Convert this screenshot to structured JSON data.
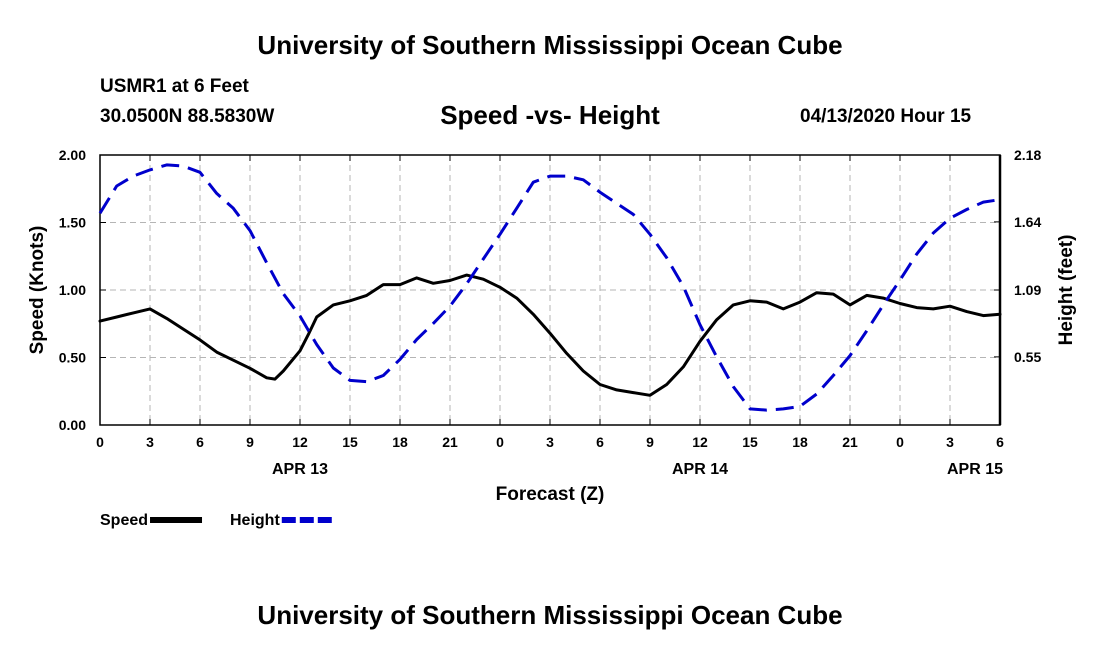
{
  "header": {
    "title": "University of Southern Mississippi Ocean Cube",
    "station": "USMR1 at 6 Feet",
    "coordinates": "30.0500N 88.5830W",
    "subtitle": "Speed -vs- Height",
    "date": "04/13/2020 Hour 15"
  },
  "footer": {
    "title": "University of Southern Mississippi Ocean Cube"
  },
  "chart_data": {
    "type": "line",
    "title": "Speed -vs- Height",
    "xlabel": "Forecast (Z)",
    "ylabel": "Speed (Knots)",
    "y2label": "Height (feet)",
    "xlim": [
      0,
      54
    ],
    "ylim": [
      0,
      2.0
    ],
    "y2lim": [
      0.0,
      2.18
    ],
    "grid": true,
    "x_tick_values": [
      0,
      3,
      6,
      9,
      12,
      15,
      18,
      21,
      24,
      27,
      30,
      33,
      36,
      39,
      42,
      45,
      48,
      51,
      54
    ],
    "x_tick_labels": [
      "0",
      "3",
      "6",
      "9",
      "12",
      "15",
      "18",
      "21",
      "0",
      "3",
      "6",
      "9",
      "12",
      "15",
      "18",
      "21",
      "0",
      "3",
      "6"
    ],
    "date_labels": [
      {
        "x": 12,
        "label": "APR 13"
      },
      {
        "x": 36,
        "label": "APR 14"
      },
      {
        "x": 52.5,
        "label": "APR 15"
      }
    ],
    "y_ticks": [
      0,
      0.5,
      1.0,
      1.5,
      2.0
    ],
    "y_tick_labels": [
      "0.00",
      "0.50",
      "1.00",
      "1.50",
      "2.00"
    ],
    "y2_ticks": [
      0.55,
      1.09,
      1.64,
      2.18
    ],
    "y2_tick_labels": [
      "0.55",
      "1.09",
      "1.64",
      "2.18"
    ],
    "legend": [
      "Speed",
      "Height"
    ],
    "legend_position": "bottom-left",
    "series": [
      {
        "name": "Speed",
        "axis": "left",
        "color": "#000000",
        "style": "solid",
        "x": [
          0,
          1,
          2,
          3,
          4,
          5,
          6,
          7,
          8,
          9,
          10,
          10.5,
          11,
          12,
          12.5,
          13,
          14,
          15,
          16,
          17,
          18,
          19,
          20,
          21,
          22,
          23,
          24,
          25,
          26,
          27,
          28,
          29,
          30,
          31,
          32,
          33,
          34,
          35,
          36,
          37,
          38,
          39,
          40,
          41,
          42,
          43,
          44,
          45,
          46,
          47,
          48,
          49,
          50,
          51,
          52,
          53,
          54
        ],
        "values": [
          0.77,
          0.8,
          0.83,
          0.86,
          0.79,
          0.71,
          0.63,
          0.54,
          0.48,
          0.42,
          0.35,
          0.34,
          0.4,
          0.55,
          0.67,
          0.8,
          0.89,
          0.92,
          0.96,
          1.04,
          1.04,
          1.09,
          1.05,
          1.07,
          1.11,
          1.08,
          1.02,
          0.94,
          0.82,
          0.68,
          0.53,
          0.4,
          0.3,
          0.26,
          0.24,
          0.22,
          0.3,
          0.43,
          0.62,
          0.78,
          0.89,
          0.92,
          0.91,
          0.86,
          0.91,
          0.98,
          0.97,
          0.89,
          0.96,
          0.94,
          0.9,
          0.87,
          0.86,
          0.88,
          0.84,
          0.81,
          0.82
        ]
      },
      {
        "name": "Height",
        "axis": "right",
        "color": "#0000cc",
        "style": "dashed",
        "x": [
          0,
          1,
          2,
          3,
          4,
          5,
          6,
          7,
          8,
          9,
          10,
          11,
          12,
          13,
          14,
          15,
          16,
          17,
          18,
          19,
          20,
          21,
          22,
          23,
          24,
          25,
          26,
          27,
          28,
          29,
          30,
          31,
          32,
          33,
          34,
          35,
          36,
          37,
          38,
          39,
          40,
          41,
          42,
          43,
          44,
          45,
          46,
          47,
          48,
          49,
          50,
          51,
          52,
          53,
          54
        ],
        "values": [
          1.71,
          1.93,
          2.01,
          2.06,
          2.1,
          2.09,
          2.04,
          1.87,
          1.75,
          1.57,
          1.31,
          1.06,
          0.88,
          0.65,
          0.46,
          0.36,
          0.35,
          0.4,
          0.53,
          0.69,
          0.82,
          0.96,
          1.14,
          1.34,
          1.54,
          1.75,
          1.96,
          2.01,
          2.01,
          1.98,
          1.88,
          1.79,
          1.7,
          1.54,
          1.35,
          1.12,
          0.81,
          0.55,
          0.31,
          0.13,
          0.12,
          0.13,
          0.15,
          0.25,
          0.4,
          0.56,
          0.76,
          0.97,
          1.17,
          1.38,
          1.55,
          1.67,
          1.74,
          1.8,
          1.82
        ]
      }
    ]
  }
}
